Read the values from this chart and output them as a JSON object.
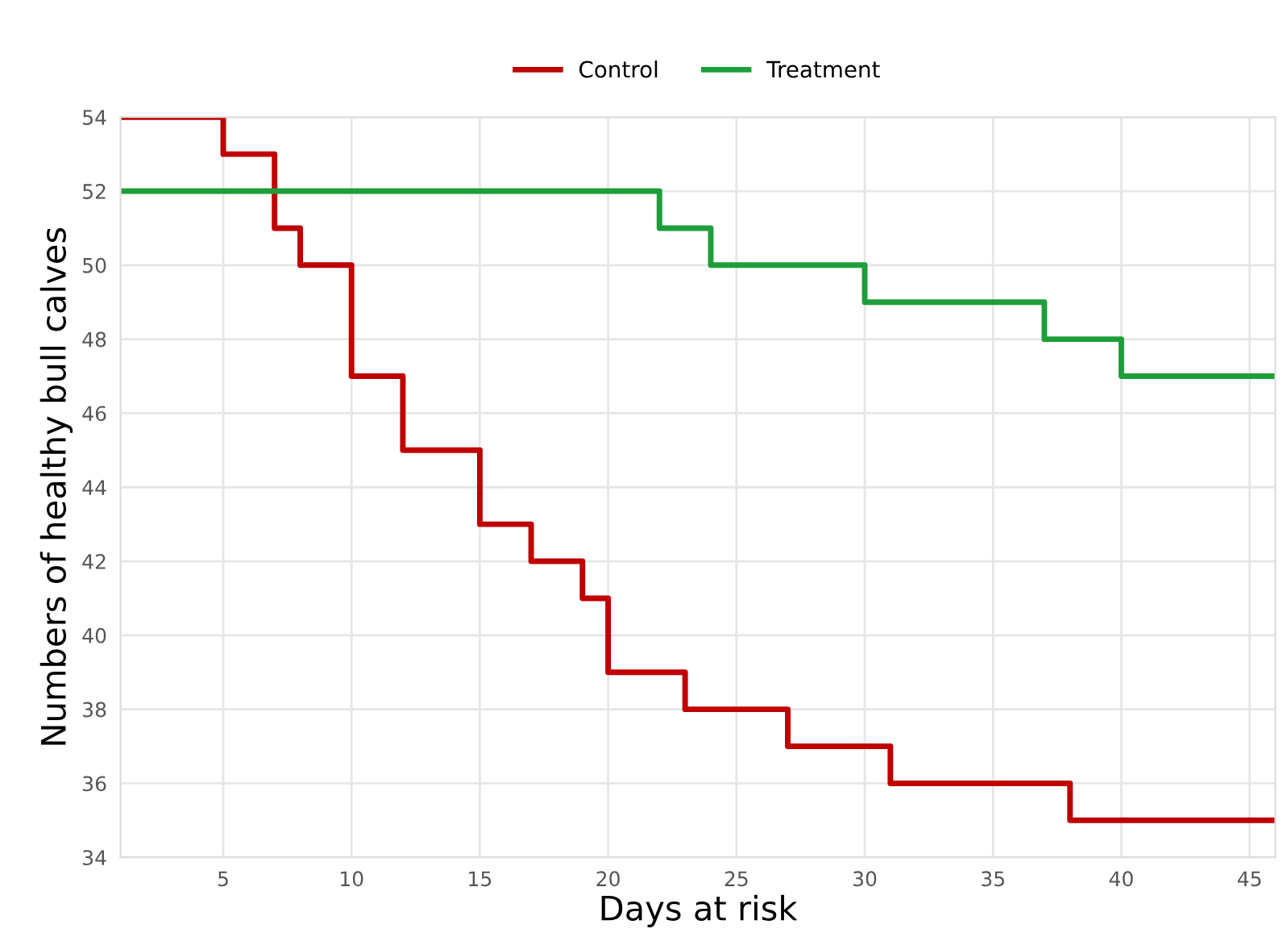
{
  "chart_data": {
    "type": "step",
    "xlabel": "Days at risk",
    "ylabel": "Numbers of healthy bull calves",
    "series": [
      {
        "name": "Control",
        "color": "#c00000",
        "x": [
          1,
          5,
          7,
          8,
          10,
          12,
          15,
          17,
          19,
          20,
          23,
          27,
          31,
          38,
          46
        ],
        "values": [
          54,
          53,
          51,
          50,
          47,
          45,
          43,
          42,
          41,
          39,
          38,
          37,
          36,
          35,
          35
        ]
      },
      {
        "name": "Treatment",
        "color": "#1e9e3a",
        "x": [
          1,
          22,
          24,
          30,
          37,
          40,
          46
        ],
        "values": [
          52,
          51,
          50,
          49,
          48,
          47,
          47
        ]
      }
    ],
    "xlim": [
      1,
      46
    ],
    "xticks": [
      5,
      10,
      15,
      20,
      25,
      30,
      35,
      40,
      45
    ],
    "ylim": [
      34,
      54
    ],
    "yticks": [
      34,
      36,
      38,
      40,
      42,
      44,
      46,
      48,
      50,
      52,
      54
    ],
    "grid": true,
    "legend": "top",
    "marker": "none",
    "line_style": "solid"
  }
}
